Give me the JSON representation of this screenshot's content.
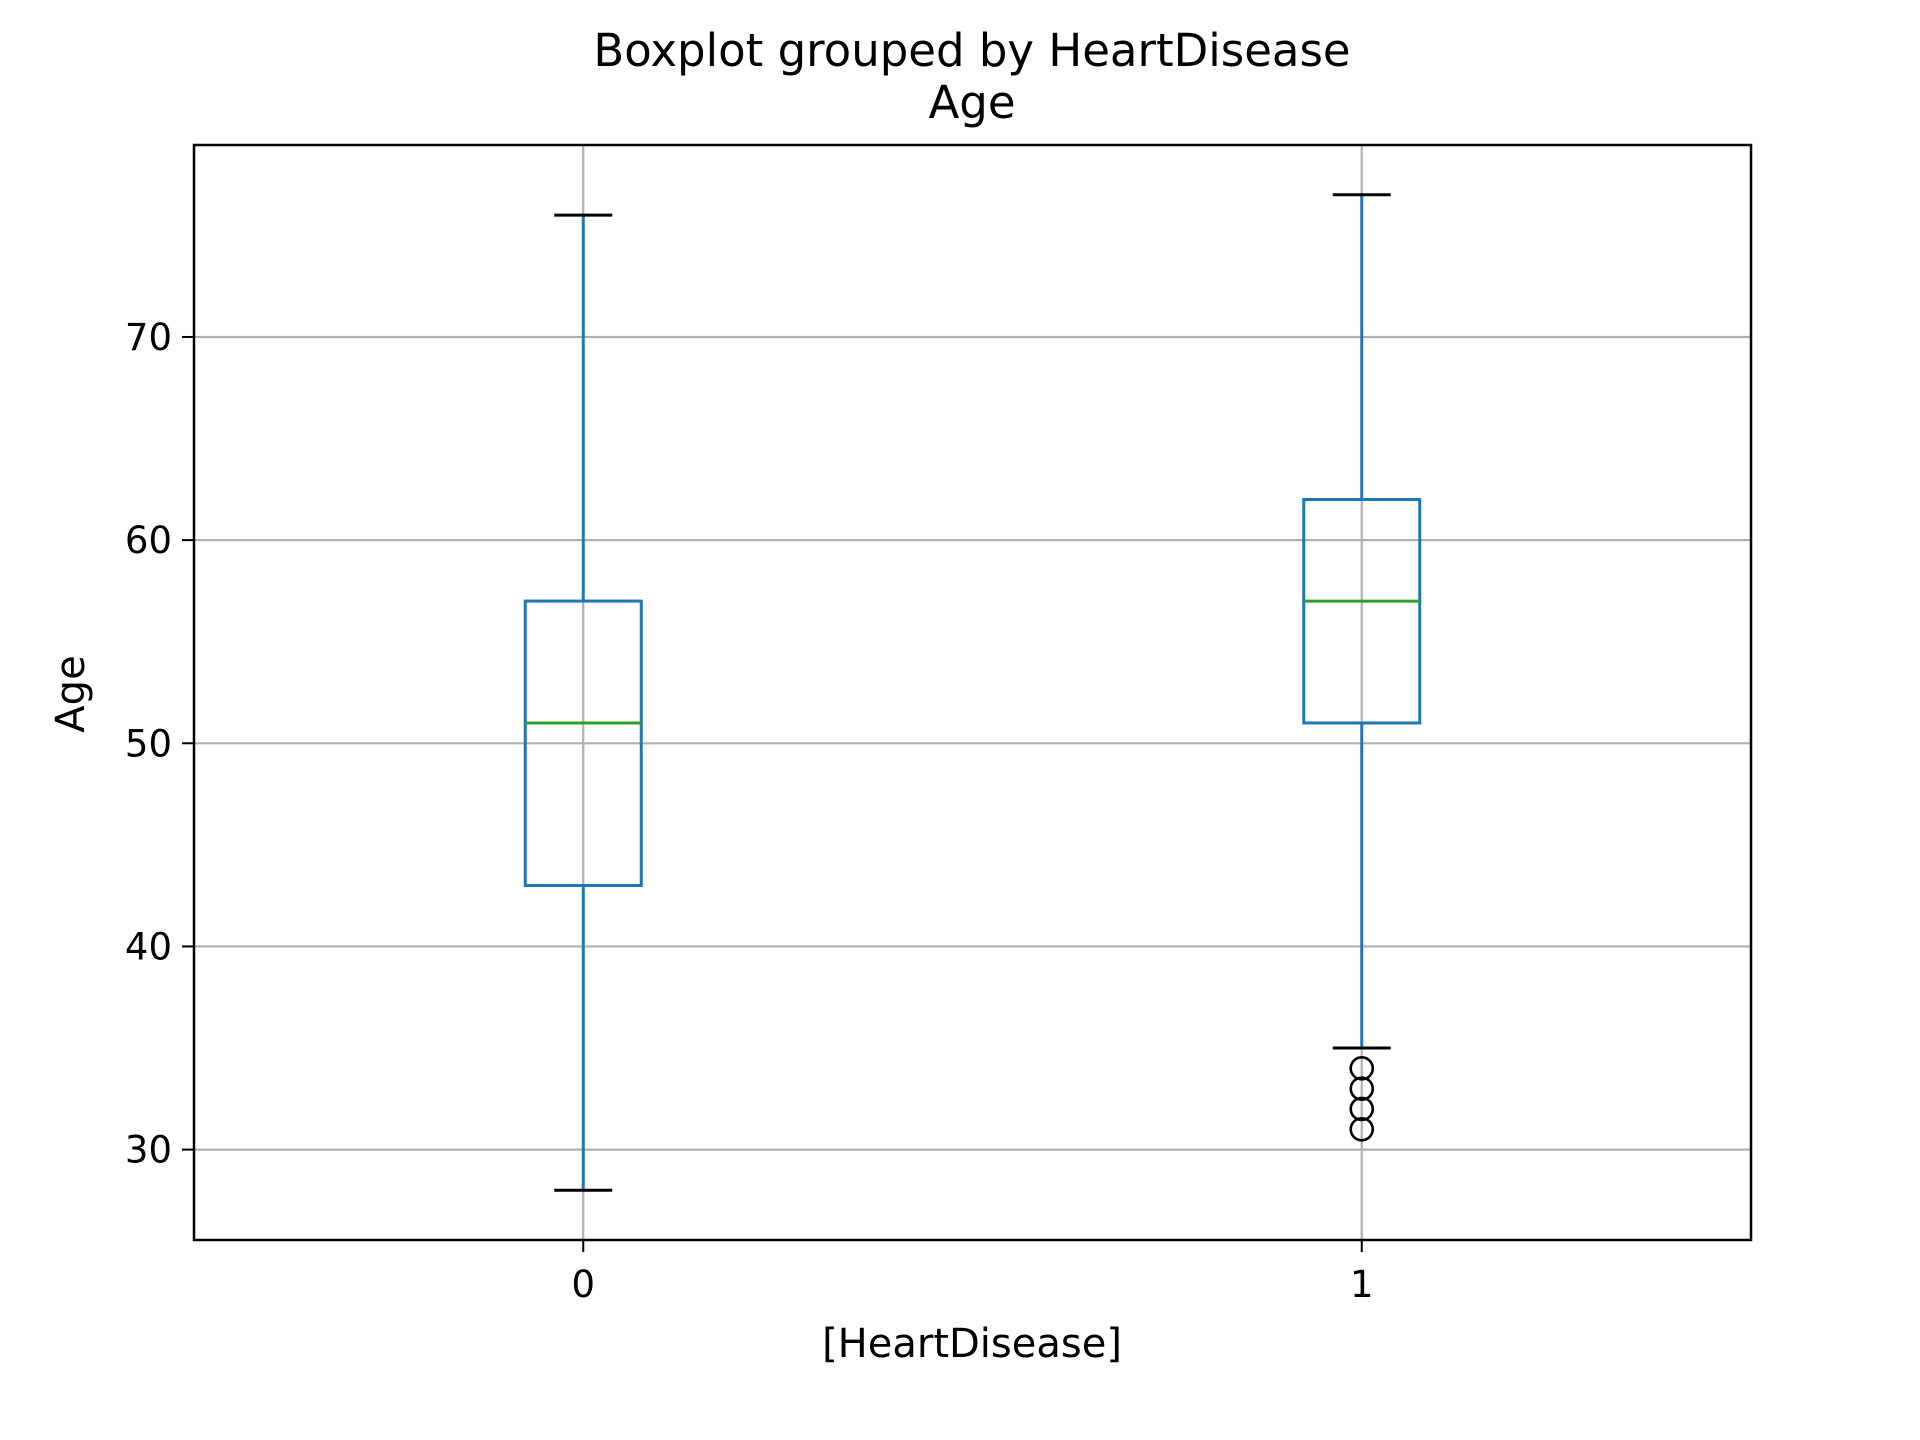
{
  "chart_data": {
    "type": "boxplot",
    "suptitle": "Boxplot grouped by HeartDisease",
    "title": "Age",
    "xlabel": "[HeartDisease]",
    "ylabel": "Age",
    "categories": [
      "0",
      "1"
    ],
    "yticks": [
      30,
      40,
      50,
      60,
      70
    ],
    "ylim": [
      25.55,
      79.45
    ],
    "grid": true,
    "colors": {
      "box": "#1f77b4",
      "median": "#2ca02c",
      "whisker_cap": "#000000",
      "grid": "#b0b0b0",
      "frame": "#000000"
    },
    "boxes": [
      {
        "category": "0",
        "whisker_low": 28,
        "q1": 43,
        "median": 51,
        "q3": 57,
        "whisker_high": 76,
        "outliers": []
      },
      {
        "category": "1",
        "whisker_low": 35,
        "q1": 51,
        "median": 57,
        "q3": 62,
        "whisker_high": 77,
        "outliers": [
          31,
          32,
          33,
          34
        ]
      }
    ]
  }
}
